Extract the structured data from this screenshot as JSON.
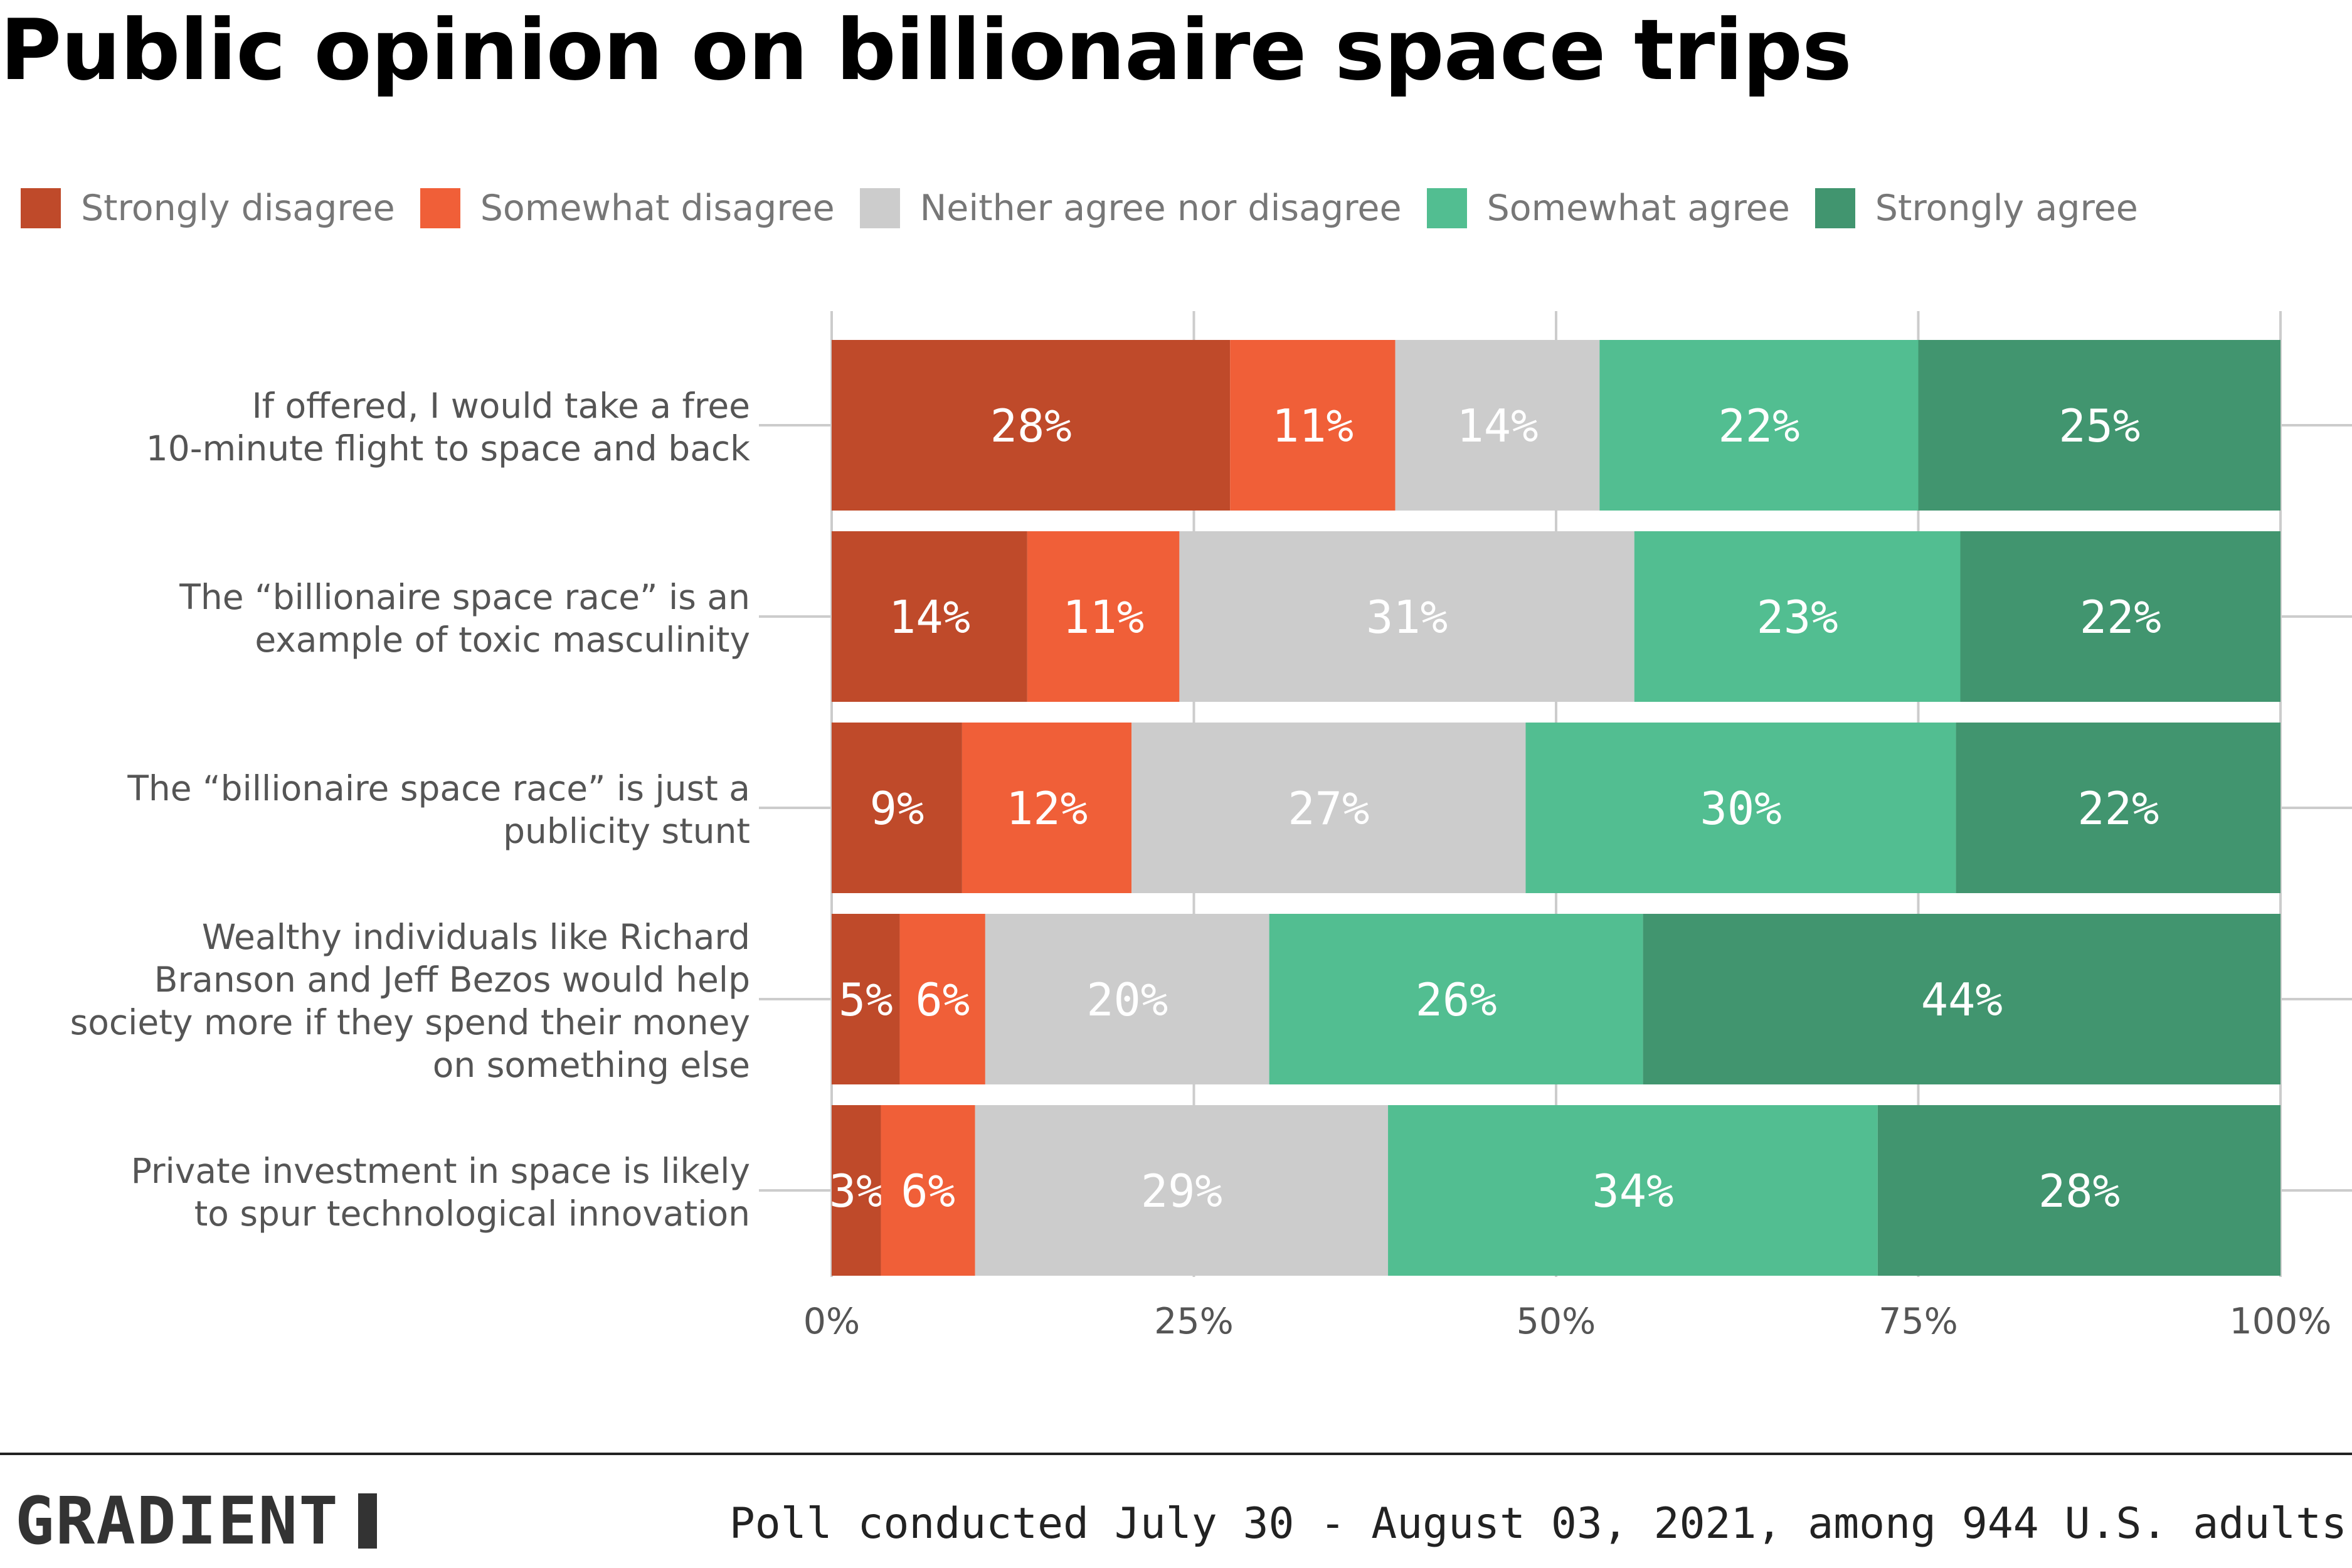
{
  "title": "Public opinion on billionaire space trips",
  "legend": [
    {
      "label": "Strongly disagree",
      "color": "#bf4a2a"
    },
    {
      "label": "Somewhat disagree",
      "color": "#f05f38"
    },
    {
      "label": "Neither agree nor disagree",
      "color": "#cccccc"
    },
    {
      "label": "Somewhat agree",
      "color": "#52be91"
    },
    {
      "label": "Strongly agree",
      "color": "#41956f"
    }
  ],
  "chart_data": {
    "type": "bar",
    "orientation": "horizontal",
    "stacked": true,
    "categories": [
      [
        "If offered, I would take a free",
        "10-minute flight to space and back"
      ],
      [
        "The “billionaire space race” is an",
        "example of toxic masculinity"
      ],
      [
        "The “billionaire space race” is just a",
        "publicity stunt"
      ],
      [
        "Wealthy individuals like Richard",
        "Branson and Jeff Bezos would help",
        "society more if they spend their money",
        "on something else"
      ],
      [
        "Private investment in space is likely",
        "to spur technological innovation"
      ]
    ],
    "series": [
      {
        "name": "Strongly disagree",
        "color": "#bf4a2a",
        "values": [
          27.5,
          13.5,
          9,
          4.7,
          3.4
        ],
        "labels": [
          "28%",
          "14%",
          "9%",
          "5%",
          "3%"
        ]
      },
      {
        "name": "Somewhat disagree",
        "color": "#f05f38",
        "values": [
          11.4,
          10.5,
          11.7,
          5.9,
          6.5
        ],
        "labels": [
          "11%",
          "11%",
          "12%",
          "6%",
          "6%"
        ]
      },
      {
        "name": "Neither agree nor disagree",
        "color": "#cccccc",
        "values": [
          14.1,
          31.4,
          27.2,
          19.6,
          28.5
        ],
        "labels": [
          "14%",
          "31%",
          "27%",
          "20%",
          "29%"
        ]
      },
      {
        "name": "Somewhat agree",
        "color": "#52be91",
        "values": [
          22,
          22.5,
          29.7,
          25.8,
          33.8
        ],
        "labels": [
          "22%",
          "23%",
          "30%",
          "26%",
          "34%"
        ]
      },
      {
        "name": "Strongly agree",
        "color": "#41956f",
        "values": [
          25,
          22.1,
          22.4,
          44,
          27.8
        ],
        "labels": [
          "25%",
          "22%",
          "22%",
          "44%",
          "28%"
        ]
      }
    ],
    "xticks": [
      "0%",
      "25%",
      "50%",
      "75%",
      "100%"
    ],
    "xlim": [
      0,
      100
    ],
    "grid": true,
    "legend_position": "top"
  },
  "footer": {
    "brand": "GRADIENT",
    "note": "Poll conducted July 30 - August 03, 2021, among 944 U.S. adults"
  }
}
